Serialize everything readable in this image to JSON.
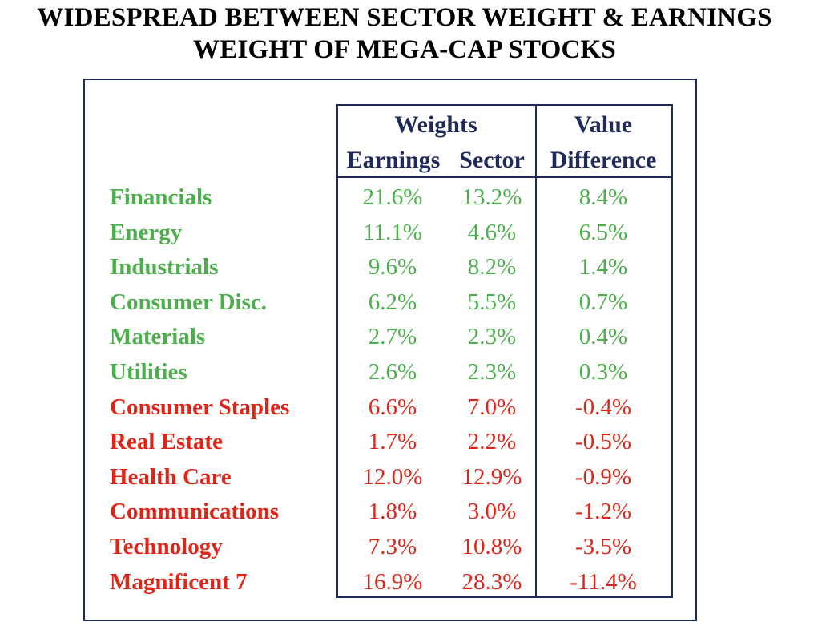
{
  "title": {
    "line1": "WIDESPREAD BETWEEN SECTOR WEIGHT & EARNINGS",
    "line2": "WEIGHT OF MEGA-CAP STOCKS"
  },
  "colors": {
    "positive": "#4cae4c",
    "negative": "#e02418",
    "header": "#1f2a5c"
  },
  "chart_data": {
    "type": "table",
    "title": "WIDESPREAD BETWEEN SECTOR WEIGHT & EARNINGS WEIGHT OF MEGA-CAP STOCKS",
    "header_groups": [
      "Weights",
      "Value"
    ],
    "columns": [
      "Earnings",
      "Sector",
      "Difference"
    ],
    "rows": [
      {
        "sector": "Financials",
        "earnings": "21.6%",
        "sector_weight": "13.2%",
        "difference": "8.4%"
      },
      {
        "sector": "Energy",
        "earnings": "11.1%",
        "sector_weight": "4.6%",
        "difference": "6.5%"
      },
      {
        "sector": "Industrials",
        "earnings": "9.6%",
        "sector_weight": "8.2%",
        "difference": "1.4%"
      },
      {
        "sector": "Consumer Disc.",
        "earnings": "6.2%",
        "sector_weight": "5.5%",
        "difference": "0.7%"
      },
      {
        "sector": "Materials",
        "earnings": "2.7%",
        "sector_weight": "2.3%",
        "difference": "0.4%"
      },
      {
        "sector": "Utilities",
        "earnings": "2.6%",
        "sector_weight": "2.3%",
        "difference": "0.3%"
      },
      {
        "sector": "Consumer Staples",
        "earnings": "6.6%",
        "sector_weight": "7.0%",
        "difference": "-0.4%"
      },
      {
        "sector": "Real Estate",
        "earnings": "1.7%",
        "sector_weight": "2.2%",
        "difference": "-0.5%"
      },
      {
        "sector": "Health Care",
        "earnings": "12.0%",
        "sector_weight": "12.9%",
        "difference": "-0.9%"
      },
      {
        "sector": "Communications",
        "earnings": "1.8%",
        "sector_weight": "3.0%",
        "difference": "-1.2%"
      },
      {
        "sector": "Technology",
        "earnings": "7.3%",
        "sector_weight": "10.8%",
        "difference": "-3.5%"
      },
      {
        "sector": "Magnificent 7",
        "earnings": "16.9%",
        "sector_weight": "28.3%",
        "difference": "-11.4%"
      }
    ]
  }
}
